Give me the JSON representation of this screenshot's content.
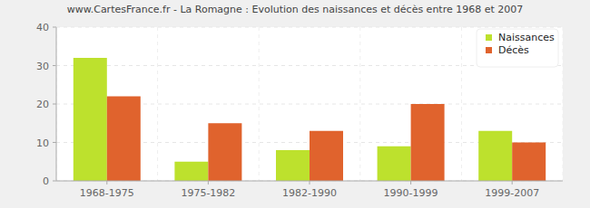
{
  "chart_data": {
    "type": "bar",
    "title": "www.CartesFrance.fr - La Romagne : Evolution des naissances et décès entre 1968 et 2007",
    "categories": [
      "1968-1975",
      "1975-1982",
      "1982-1990",
      "1990-1999",
      "1999-2007"
    ],
    "series": [
      {
        "name": "Naissances",
        "color": "#bde12d",
        "values": [
          32,
          5,
          8,
          9,
          13
        ]
      },
      {
        "name": "Décès",
        "color": "#e0632d",
        "values": [
          22,
          15,
          13,
          20,
          10
        ]
      }
    ],
    "ylim": [
      0,
      40
    ],
    "yticks": [
      0,
      10,
      20,
      30,
      40
    ],
    "grid": true,
    "legend": "top-right"
  }
}
